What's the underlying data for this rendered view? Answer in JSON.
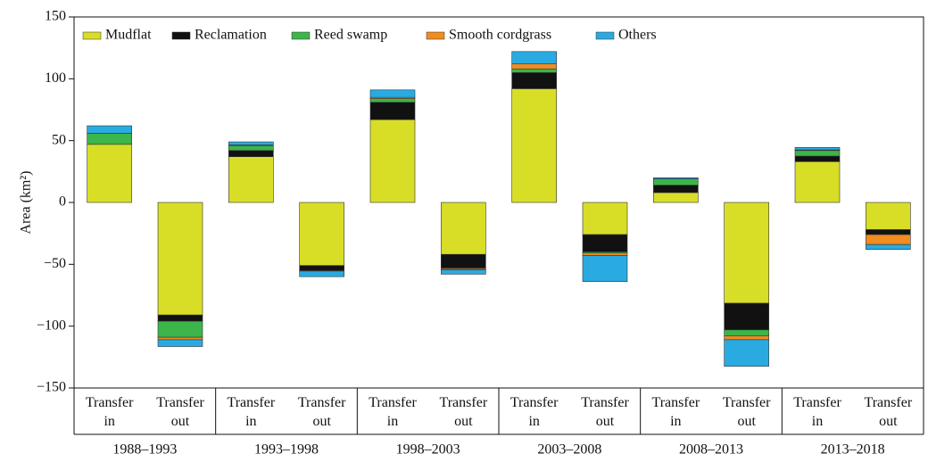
{
  "chart_data": {
    "type": "stacked_bar",
    "y_label": "Area (km²)",
    "groups": [
      "1988–1993",
      "1993–1998",
      "1998–2003",
      "2003–2008",
      "2008–2013",
      "2013–2018"
    ],
    "categories": [
      "Transfer in",
      "Transfer out",
      "Transfer in",
      "Transfer out",
      "Transfer in",
      "Transfer out",
      "Transfer in",
      "Transfer out",
      "Transfer in",
      "Transfer out",
      "Transfer in",
      "Transfer out"
    ],
    "series": [
      {
        "name": "Mudflat",
        "color": "#d8de26",
        "values": [
          47,
          -91,
          37,
          -51,
          67,
          -42,
          92,
          -26,
          8,
          -81.5,
          33,
          -22
        ]
      },
      {
        "name": "Reclamation",
        "color": "#111111",
        "values": [
          0,
          -5,
          5,
          -4,
          14,
          -11,
          13,
          -14,
          6,
          -21.5,
          4.5,
          -4
        ]
      },
      {
        "name": "Reed swamp",
        "color": "#3cb54a",
        "values": [
          9,
          -13,
          4,
          -0.5,
          3,
          -0.5,
          3,
          -1,
          5,
          -5,
          4.5,
          0
        ]
      },
      {
        "name": "Smooth cordgrass",
        "color": "#f28c1e",
        "values": [
          0,
          -2,
          0.5,
          0,
          1,
          -1,
          4,
          -2,
          0,
          -3,
          0.5,
          -8
        ]
      },
      {
        "name": "Others",
        "color": "#29abe2",
        "values": [
          6,
          -5.5,
          2.5,
          -4.5,
          6,
          -3.5,
          10,
          -21,
          1,
          -21.5,
          2,
          -4
        ]
      }
    ],
    "ylim": [
      -150,
      150
    ],
    "yticks": [
      {
        "value": -150,
        "label": "−150"
      },
      {
        "value": -100,
        "label": "−100"
      },
      {
        "value": -50,
        "label": "−50"
      },
      0,
      50,
      100,
      150
    ],
    "legend": "top"
  }
}
